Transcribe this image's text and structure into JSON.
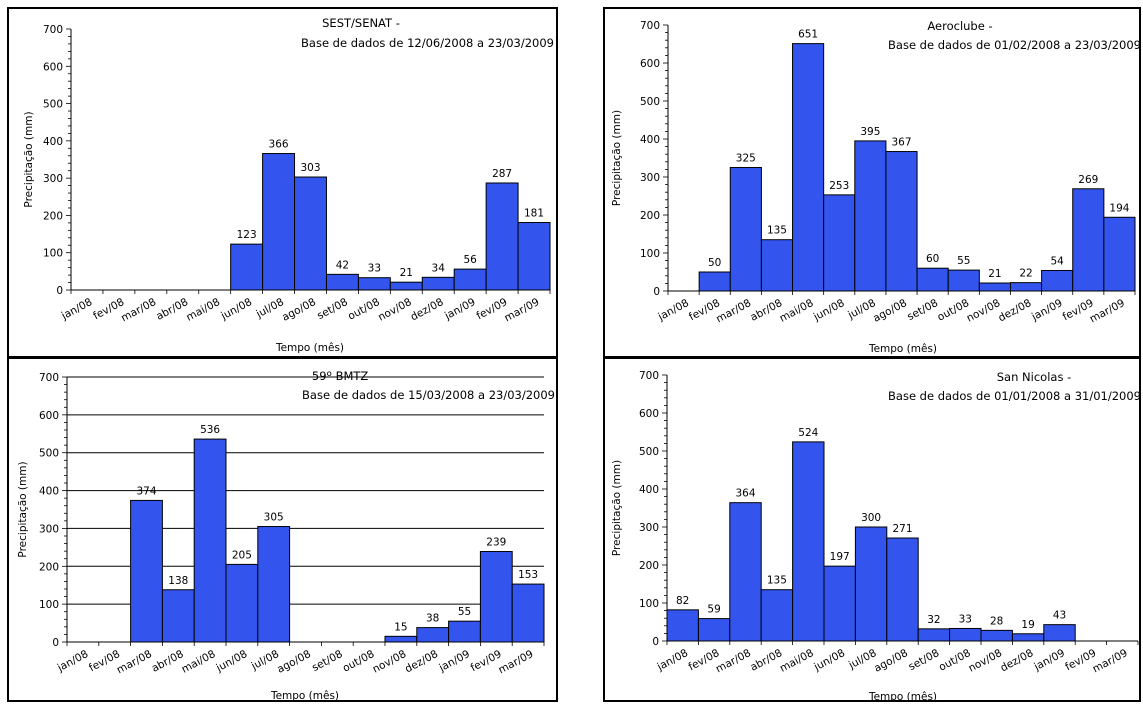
{
  "chart_data": [
    {
      "type": "bar",
      "title": "SEST/SENAT -",
      "subtitle": "Base de dados de 12/06/2008  a  23/03/2009",
      "xlabel": "Tempo (mês)",
      "ylabel": "Precipitação (mm)",
      "ylim": [
        0,
        700
      ],
      "yticks": [
        "0",
        "100",
        "200",
        "300",
        "400",
        "500",
        "600",
        "700"
      ],
      "grid": false,
      "categories": [
        "jan/08",
        "fev/08",
        "mar/08",
        "abr/08",
        "mai/08",
        "jun/08",
        "jul/08",
        "ago/08",
        "set/08",
        "out/08",
        "nov/08",
        "dez/08",
        "jan/09",
        "fev/09",
        "mar/09"
      ],
      "values": [
        null,
        null,
        null,
        null,
        null,
        123,
        366,
        303,
        42,
        33,
        21,
        34,
        56,
        287,
        181
      ],
      "labels": [
        null,
        null,
        null,
        null,
        null,
        "123",
        "366",
        "303",
        "42",
        "33",
        "21",
        "34",
        "56",
        "287",
        "181"
      ],
      "bar_color": "#3355ee"
    },
    {
      "type": "bar",
      "title": "Aeroclube -",
      "subtitle": "Base de dados de 01/02/2008  a  23/03/2009",
      "xlabel": "Tempo (mês)",
      "ylabel": "Precipitação (mm)",
      "ylim": [
        0,
        700
      ],
      "yticks": [
        "0",
        "100",
        "200",
        "300",
        "400",
        "500",
        "600",
        "700"
      ],
      "grid": false,
      "categories": [
        "jan/08",
        "fev/08",
        "mar/08",
        "abr/08",
        "mai/08",
        "jun/08",
        "jul/08",
        "ago/08",
        "set/08",
        "out/08",
        "nov/08",
        "dez/08",
        "jan/09",
        "fev/09",
        "mar/09"
      ],
      "values": [
        null,
        50,
        325,
        135,
        651,
        253,
        395,
        367,
        60,
        55,
        21,
        22,
        54,
        269,
        194
      ],
      "labels": [
        null,
        "50",
        "325",
        "135",
        "651",
        "253",
        "395",
        "367",
        "60",
        "55",
        "21",
        "22",
        "54",
        "269",
        "194"
      ],
      "bar_color": "#3355ee"
    },
    {
      "type": "bar",
      "title": "59º BMTZ -",
      "subtitle": "Base de dados de 15/03/2008  a  23/03/2009",
      "xlabel": "Tempo (mês)",
      "ylabel": "Precipitação (mm)",
      "ylim": [
        0,
        700
      ],
      "yticks": [
        "0",
        "100",
        "200",
        "300",
        "400",
        "500",
        "600",
        "700"
      ],
      "grid": true,
      "categories": [
        "jan/08",
        "fev/08",
        "mar/08",
        "abr/08",
        "mai/08",
        "jun/08",
        "jul/08",
        "ago/08",
        "set/08",
        "out/08",
        "nov/08",
        "dez/08",
        "jan/09",
        "fev/09",
        "mar/09"
      ],
      "values": [
        null,
        null,
        374,
        138,
        536,
        205,
        305,
        null,
        null,
        null,
        15,
        38,
        55,
        239,
        153
      ],
      "labels": [
        null,
        null,
        "374",
        "138",
        "536",
        "205",
        "305",
        null,
        null,
        null,
        "15",
        "38",
        "55",
        "239",
        "153"
      ],
      "bar_color": "#3355ee"
    },
    {
      "type": "bar",
      "title": "San Nicolas -",
      "subtitle": "Base de dados de 01/01/2008  a  31/01/2009",
      "xlabel": "Tempo (mês)",
      "ylabel": "Precipitação (mm)",
      "ylim": [
        0,
        700
      ],
      "yticks": [
        "0",
        "100",
        "200",
        "300",
        "400",
        "500",
        "600",
        "700"
      ],
      "grid": false,
      "categories": [
        "jan/08",
        "fev/08",
        "mar/08",
        "abr/08",
        "mai/08",
        "jun/08",
        "jul/08",
        "ago/08",
        "set/08",
        "out/08",
        "nov/08",
        "dez/08",
        "jan/09",
        "fev/09",
        "mar/09"
      ],
      "values": [
        82,
        59,
        364,
        135,
        524,
        197,
        300,
        271,
        32,
        33,
        28,
        19,
        43,
        null,
        null
      ],
      "labels": [
        "82",
        "59",
        "364",
        "135",
        "524",
        "197",
        "300",
        "271",
        "32",
        "33",
        "28",
        "19",
        "43",
        null,
        null
      ],
      "bar_color": "#3355ee"
    }
  ]
}
